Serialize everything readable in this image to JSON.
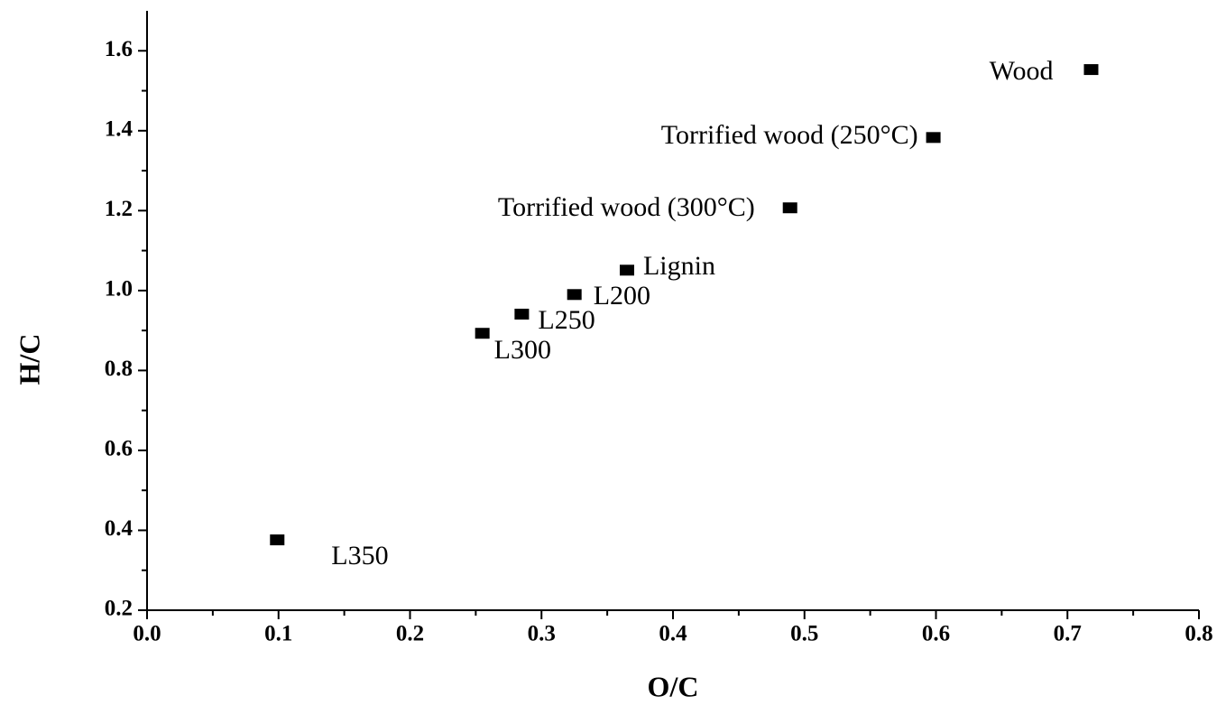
{
  "chart_data": {
    "type": "scatter",
    "xlabel": "O/C",
    "ylabel": "H/C",
    "x": [
      0.718,
      0.598,
      0.489,
      0.365,
      0.325,
      0.285,
      0.255,
      0.099
    ],
    "values": [
      1.553,
      1.383,
      1.207,
      1.051,
      0.99,
      0.941,
      0.893,
      0.376
    ],
    "labels": [
      "Wood",
      "Torrified wood (250°C)",
      "Torrified wood (300°C)",
      "Lignin",
      "L200",
      "L250",
      "L300",
      "L350"
    ],
    "color": "#000000",
    "xlim": [
      0,
      0.8
    ],
    "ylim": [
      0.2,
      1.7
    ],
    "xticks": [
      {
        "value": 0,
        "label": "0.0"
      },
      0.1,
      0.2,
      0.3,
      0.4,
      0.5,
      0.6,
      0.7,
      0.8
    ],
    "yticks": [
      0.2,
      0.4,
      0.6,
      0.8,
      {
        "value": 1,
        "label": "1.0"
      },
      1.2,
      1.4,
      1.6
    ]
  }
}
